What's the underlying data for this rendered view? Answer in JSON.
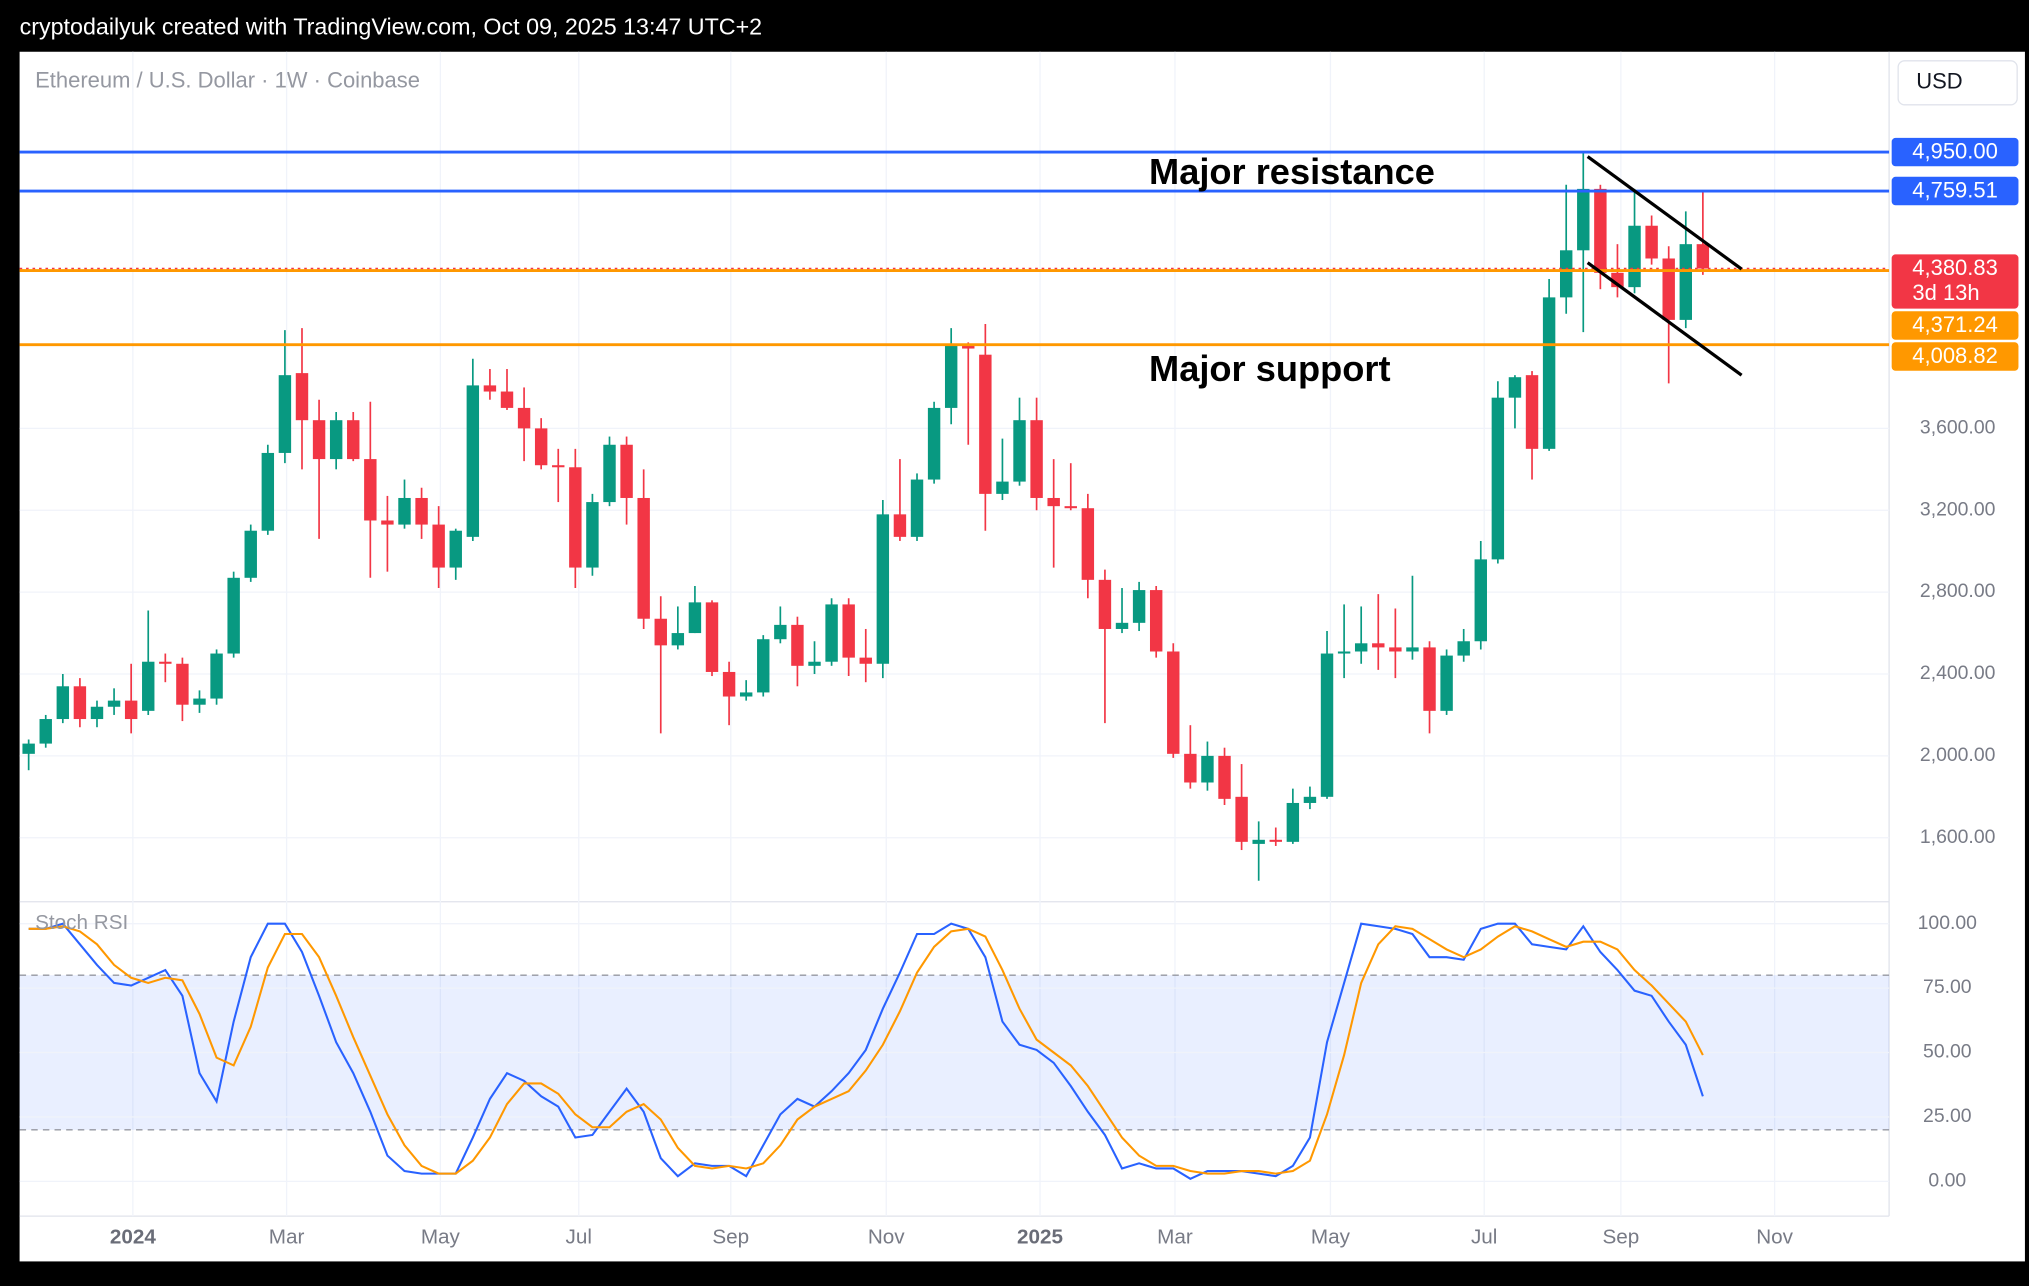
{
  "header": {
    "text": "cryptodailyuk created with TradingView.com, Oct 09, 2025 13:47 UTC+2"
  },
  "chart_data": [
    {
      "type": "candlestick",
      "title": "Ethereum / U.S. Dollar · 1W · Coinbase",
      "currency": "USD",
      "up_color": "#089981",
      "down_color": "#f23645",
      "open": [
        2010,
        2060,
        2180,
        2340,
        2180,
        2240,
        2270,
        2220,
        2460,
        2450,
        2250,
        2280,
        2500,
        2870,
        3100,
        3480,
        3870,
        3640,
        3450,
        3640,
        3450,
        3150,
        3130,
        3260,
        3130,
        2920,
        3070,
        3810,
        3780,
        3700,
        3600,
        3420,
        3410,
        2920,
        3240,
        3520,
        3260,
        2670,
        2540,
        2600,
        2750,
        2410,
        2290,
        2310,
        2570,
        2640,
        2440,
        2460,
        2740,
        2480,
        2450,
        3180,
        3070,
        3350,
        3700,
        4010,
        3960,
        3280,
        3340,
        3640,
        3260,
        3220,
        3210,
        2860,
        2620,
        2650,
        2810,
        2510,
        2010,
        1870,
        2000,
        1800,
        1570,
        1590,
        1580,
        1770,
        1800,
        2500,
        2510,
        2550,
        2530,
        2510,
        2530,
        2220,
        2490,
        2560,
        2960,
        3750,
        3860,
        3500,
        4240,
        4470,
        4770,
        4360,
        4290,
        4590,
        4430,
        4130,
        4500
      ],
      "high": [
        2080,
        2200,
        2400,
        2380,
        2270,
        2330,
        2450,
        2710,
        2500,
        2480,
        2320,
        2520,
        2900,
        3130,
        3520,
        4080,
        4090,
        3740,
        3680,
        3680,
        3730,
        3270,
        3350,
        3310,
        3220,
        3110,
        3940,
        3890,
        3890,
        3800,
        3650,
        3500,
        3500,
        3280,
        3560,
        3560,
        3400,
        2780,
        2730,
        2830,
        2760,
        2460,
        2370,
        2590,
        2730,
        2680,
        2560,
        2770,
        2770,
        2620,
        3250,
        3450,
        3380,
        3730,
        4090,
        4020,
        4110,
        3550,
        3750,
        3750,
        3450,
        3430,
        3280,
        2910,
        2820,
        2850,
        2830,
        2550,
        2150,
        2070,
        2040,
        1960,
        1680,
        1650,
        1840,
        1850,
        2610,
        2740,
        2730,
        2790,
        2720,
        2880,
        2560,
        2520,
        2620,
        3050,
        3830,
        3860,
        3880,
        4330,
        4790,
        4950,
        4790,
        4500,
        4770,
        4640,
        4490,
        4660,
        4760
      ],
      "low": [
        1930,
        2040,
        2160,
        2140,
        2140,
        2200,
        2110,
        2200,
        2360,
        2170,
        2210,
        2250,
        2480,
        2850,
        3080,
        3430,
        3400,
        3060,
        3400,
        3440,
        2870,
        2900,
        3110,
        3060,
        2820,
        2860,
        3050,
        3740,
        3690,
        3440,
        3400,
        3240,
        2820,
        2880,
        3220,
        3130,
        2620,
        2110,
        2520,
        2600,
        2390,
        2150,
        2270,
        2290,
        2550,
        2340,
        2400,
        2440,
        2390,
        2360,
        2380,
        3050,
        3050,
        3330,
        3620,
        3520,
        3100,
        3250,
        3320,
        3200,
        2920,
        3200,
        2770,
        2160,
        2600,
        2610,
        2480,
        1990,
        1840,
        1830,
        1760,
        1540,
        1390,
        1560,
        1570,
        1740,
        1790,
        2380,
        2450,
        2420,
        2380,
        2470,
        2110,
        2200,
        2460,
        2520,
        2940,
        3600,
        3350,
        3490,
        4160,
        4070,
        4280,
        4240,
        4260,
        4400,
        3820,
        4090,
        4350
      ],
      "close": [
        2060,
        2180,
        2340,
        2180,
        2240,
        2270,
        2180,
        2460,
        2450,
        2250,
        2280,
        2500,
        2870,
        3100,
        3480,
        3860,
        3640,
        3450,
        3640,
        3450,
        3150,
        3130,
        3260,
        3130,
        2920,
        3100,
        3810,
        3780,
        3700,
        3600,
        3420,
        3410,
        2920,
        3240,
        3520,
        3260,
        2670,
        2540,
        2600,
        2750,
        2410,
        2290,
        2310,
        2570,
        2640,
        2440,
        2460,
        2740,
        2480,
        2450,
        3180,
        3070,
        3350,
        3700,
        4010,
        3990,
        3280,
        3340,
        3640,
        3260,
        3220,
        3210,
        2860,
        2620,
        2650,
        2810,
        2510,
        2010,
        1870,
        2000,
        1790,
        1580,
        1590,
        1580,
        1770,
        1800,
        2500,
        2510,
        2550,
        2530,
        2510,
        2530,
        2220,
        2490,
        2560,
        2960,
        3750,
        3850,
        3500,
        4240,
        4470,
        4770,
        4360,
        4290,
        4590,
        4430,
        4130,
        4500,
        4380.83
      ],
      "xlim": [
        -0.53,
        108.9
      ],
      "xticks": [
        {
          "value": 6.1,
          "label": "2024"
        },
        {
          "value": 15.1,
          "label": "Mar"
        },
        {
          "value": 24.1,
          "label": "May"
        },
        {
          "value": 32.2,
          "label": "Jul"
        },
        {
          "value": 41.1,
          "label": "Sep"
        },
        {
          "value": 50.2,
          "label": "Nov"
        },
        {
          "value": 59.2,
          "label": "2025"
        },
        {
          "value": 67.1,
          "label": "Mar"
        },
        {
          "value": 76.2,
          "label": "May"
        },
        {
          "value": 85.2,
          "label": "Jul"
        },
        {
          "value": 93.2,
          "label": "Sep"
        },
        {
          "value": 102.2,
          "label": "Nov"
        }
      ],
      "ylim": [
        1300,
        5440
      ],
      "yticks": [
        {
          "value": 1600,
          "label": "1,600.00"
        },
        {
          "value": 2000,
          "label": "2,000.00"
        },
        {
          "value": 2400,
          "label": "2,400.00"
        },
        {
          "value": 2800,
          "label": "2,800.00"
        },
        {
          "value": 3200,
          "label": "3,200.00"
        },
        {
          "value": 3600,
          "label": "3,600.00"
        }
      ],
      "levels": [
        {
          "value": 4950,
          "label": "4,950.00",
          "color": "#2962ff"
        },
        {
          "value": 4759.51,
          "label": "4,759.51",
          "color": "#2962ff"
        },
        {
          "value": 4371.24,
          "label": "4,371.24",
          "color": "#ff9800"
        },
        {
          "value": 4008.82,
          "label": "4,008.82",
          "color": "#ff9800"
        }
      ],
      "last_price": {
        "value": 4380.83,
        "label": "4,380.83",
        "countdown": "3d 13h",
        "color": "#f23645"
      },
      "annotations": [
        "Major resistance",
        "Major support"
      ]
    },
    {
      "type": "line",
      "title": "Stoch RSI",
      "series": [
        {
          "color": "#2962ff",
          "values": [
            98,
            98,
            100,
            92,
            84,
            77,
            76,
            79,
            82,
            72,
            42,
            31,
            62,
            87,
            100,
            100,
            89,
            72,
            54,
            42,
            27,
            10,
            4,
            3,
            3,
            3,
            17,
            32,
            42,
            39,
            33,
            29,
            17,
            18,
            27,
            36,
            27,
            9,
            2,
            7,
            6,
            6,
            2,
            14,
            26,
            32,
            29,
            35,
            42,
            51,
            67,
            81,
            96,
            96,
            100,
            98,
            87,
            62,
            53,
            51,
            46,
            37,
            27,
            18,
            5,
            7,
            5,
            5,
            1,
            4,
            4,
            4,
            3,
            2,
            6,
            17,
            54,
            77,
            100,
            99,
            98,
            96,
            87,
            87,
            86,
            98,
            100,
            100,
            92,
            91,
            90,
            99,
            89,
            82,
            74,
            72,
            62,
            53,
            33
          ]
        },
        {
          "color": "#ff9800",
          "values": [
            98,
            98,
            99,
            97,
            92,
            84,
            79,
            77,
            79,
            78,
            65,
            48,
            45,
            60,
            83,
            96,
            96,
            87,
            72,
            56,
            41,
            26,
            14,
            6,
            3,
            3,
            8,
            17,
            30,
            38,
            38,
            34,
            26,
            21,
            21,
            27,
            30,
            24,
            13,
            6,
            5,
            6,
            5,
            7,
            14,
            24,
            29,
            32,
            35,
            43,
            53,
            66,
            81,
            91,
            97,
            98,
            95,
            82,
            67,
            55,
            50,
            45,
            37,
            27,
            17,
            10,
            6,
            6,
            4,
            3,
            3,
            4,
            4,
            3,
            4,
            8,
            26,
            49,
            77,
            92,
            99,
            98,
            94,
            90,
            87,
            90,
            95,
            99,
            97,
            94,
            91,
            93,
            93,
            90,
            82,
            76,
            69,
            62,
            49
          ]
        }
      ],
      "band": [
        20,
        80
      ],
      "band_color": "#2962ff",
      "ylim": [
        -13.5,
        107
      ],
      "yticks": [
        {
          "value": 0,
          "label": "0.00"
        },
        {
          "value": 25,
          "label": "25.00"
        },
        {
          "value": 50,
          "label": "50.00"
        },
        {
          "value": 75,
          "label": "75.00"
        },
        {
          "value": 100,
          "label": "100.00"
        }
      ]
    }
  ]
}
